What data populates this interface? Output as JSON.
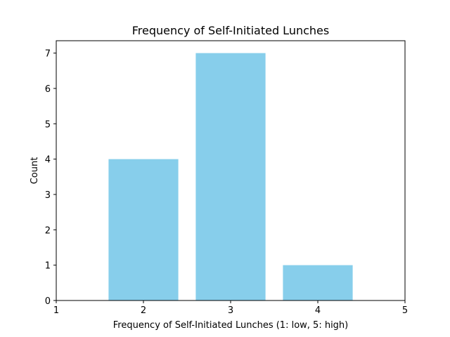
{
  "chart_data": {
    "type": "bar",
    "title": "Frequency of Self-Initiated Lunches",
    "xlabel": "Frequency of Self-Initiated Lunches (1: low, 5: high)",
    "ylabel": "Count",
    "categories": [
      2,
      3,
      4
    ],
    "values": [
      4,
      7,
      1
    ],
    "xlim": [
      1,
      5
    ],
    "ylim": [
      0,
      7.35
    ],
    "xticks": [
      "1",
      "2",
      "3",
      "4",
      "5"
    ],
    "yticks": [
      "0",
      "1",
      "2",
      "3",
      "4",
      "5",
      "6",
      "7"
    ],
    "bar_color": "#87ceeb",
    "grid": false,
    "legend": "none"
  }
}
